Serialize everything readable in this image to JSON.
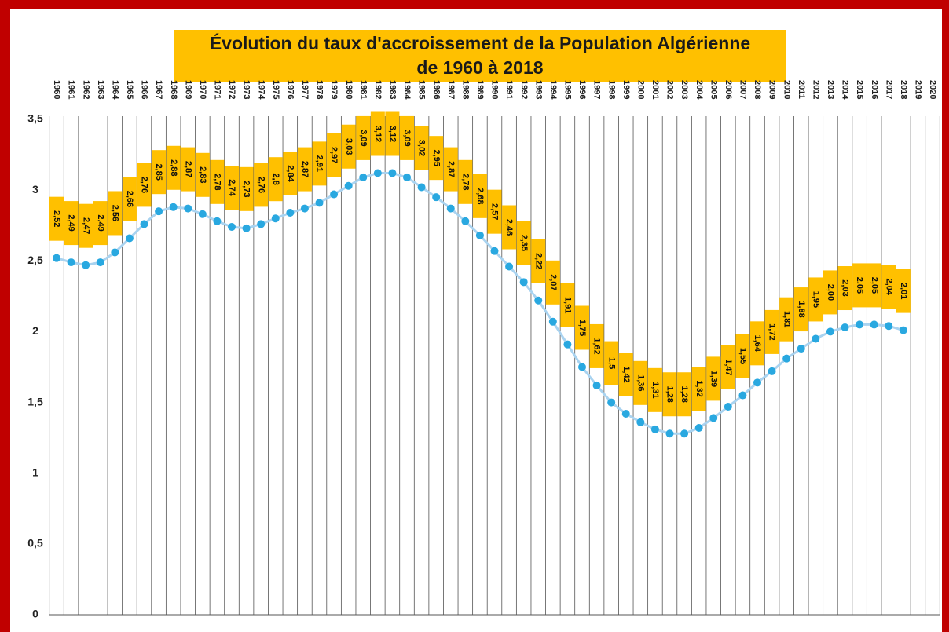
{
  "chart_data": {
    "type": "line",
    "title": [
      "Évolution du taux d'accroissement de la Population  Algérienne",
      "de 1960 à 2018"
    ],
    "categories": [
      "1960",
      "1961",
      "1962",
      "1963",
      "1964",
      "1965",
      "1966",
      "1967",
      "1968",
      "1969",
      "1970",
      "1971",
      "1972",
      "1973",
      "1974",
      "1975",
      "1976",
      "1977",
      "1978",
      "1979",
      "1980",
      "1981",
      "1982",
      "1983",
      "1984",
      "1985",
      "1986",
      "1987",
      "1988",
      "1989",
      "1990",
      "1991",
      "1992",
      "1993",
      "1994",
      "1995",
      "1996",
      "1997",
      "1998",
      "1999",
      "2000",
      "2001",
      "2002",
      "2003",
      "2004",
      "2005",
      "2006",
      "2007",
      "2008",
      "2009",
      "2010",
      "2011",
      "2012",
      "2013",
      "2014",
      "2015",
      "2016",
      "2017",
      "2018",
      "2019",
      "2020"
    ],
    "series": [
      {
        "color": "#29a8e0",
        "values": [
          2.52,
          2.49,
          2.47,
          2.49,
          2.56,
          2.66,
          2.76,
          2.85,
          2.88,
          2.87,
          2.83,
          2.78,
          2.74,
          2.73,
          2.76,
          2.8,
          2.84,
          2.87,
          2.91,
          2.97,
          3.03,
          3.09,
          3.12,
          3.12,
          3.09,
          3.02,
          2.95,
          2.87,
          2.78,
          2.68,
          2.57,
          2.46,
          2.35,
          2.22,
          2.07,
          1.91,
          1.75,
          1.62,
          1.5,
          1.42,
          1.36,
          1.31,
          1.28,
          1.28,
          1.32,
          1.39,
          1.47,
          1.55,
          1.64,
          1.72,
          1.81,
          1.88,
          1.95,
          2.0,
          2.03,
          2.05,
          2.05,
          2.04,
          2.01,
          null,
          null
        ],
        "value_labels": [
          "2,52",
          "2,49",
          "2,47",
          "2,49",
          "2,56",
          "2,66",
          "2,76",
          "2,85",
          "2,88",
          "2,87",
          "2,83",
          "2,78",
          "2,74",
          "2,73",
          "2,76",
          "2,8",
          "2,84",
          "2,87",
          "2,91",
          "2,97",
          "3,03",
          "3,09",
          "3,12",
          "3,12",
          "3,09",
          "3,02",
          "2,95",
          "2,87",
          "2,78",
          "2,68",
          "2,57",
          "2,46",
          "2,35",
          "2,22",
          "2,07",
          "1,91",
          "1,75",
          "1,62",
          "1,5",
          "1,42",
          "1,36",
          "1,31",
          "1,28",
          "1,28",
          "1,32",
          "1,39",
          "1,47",
          "1,55",
          "1,64",
          "1,72",
          "1,81",
          "1,88",
          "1,95",
          "2,00",
          "2,03",
          "2,05",
          "2,05",
          "2,04",
          "2,01",
          null,
          null
        ]
      }
    ],
    "ylim": [
      0,
      3.5
    ],
    "yticks": [
      0,
      {
        "value": 0.5,
        "label": "0,5"
      },
      1,
      {
        "value": 1.5,
        "label": "1,5"
      },
      2,
      {
        "value": 2.5,
        "label": "2,5"
      },
      3,
      {
        "value": 3.5,
        "label": "3,5"
      }
    ],
    "grid": false
  }
}
